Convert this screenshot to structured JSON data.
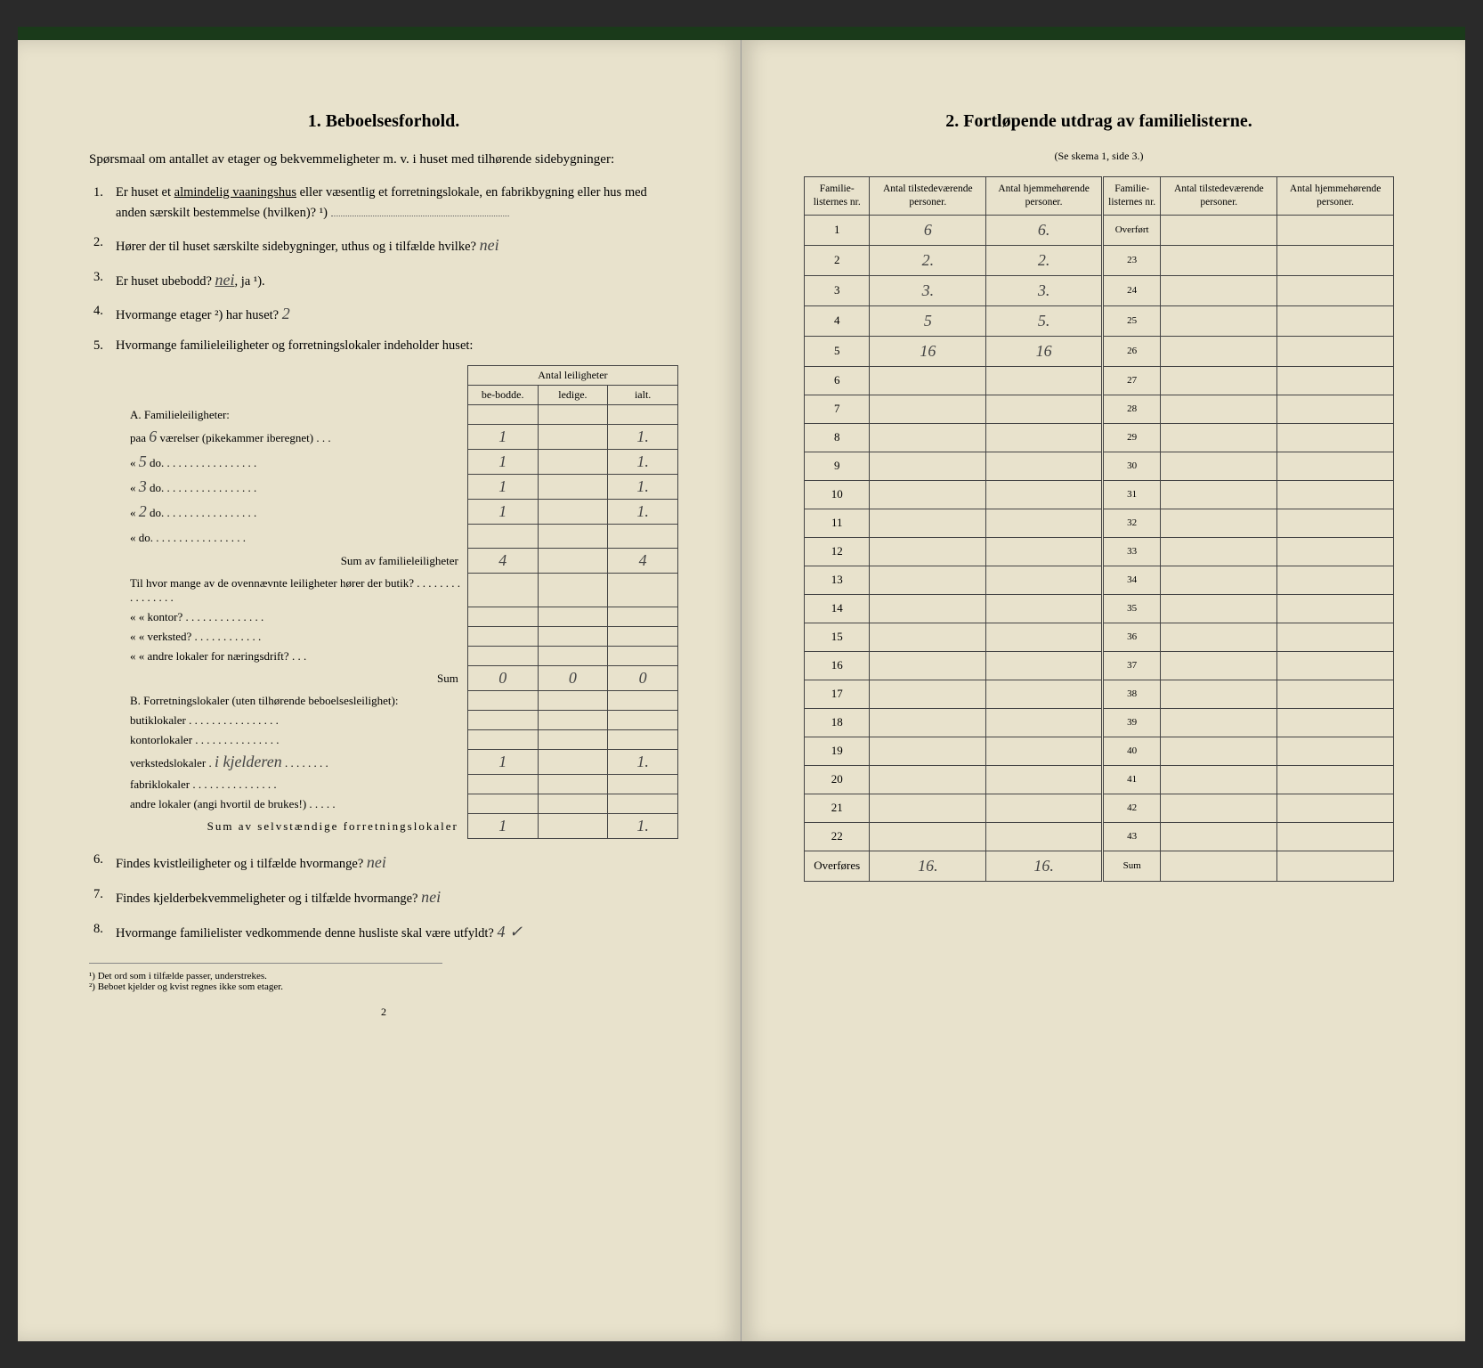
{
  "left": {
    "title": "1.   Beboelsesforhold.",
    "intro": "Spørsmaal om antallet av etager og bekvemmeligheter m. v. i huset med tilhørende sidebygninger:",
    "q1": {
      "num": "1.",
      "text": "Er huset et ",
      "underlined": "almindelig vaaningshus",
      "text2": " eller væsentlig et forretningslokale, en fabrikbygning eller hus med anden særskilt bestemmelse (hvilken)? ¹)",
      "answer": ""
    },
    "q2": {
      "num": "2.",
      "text": "Hører der til huset særskilte sidebygninger, uthus og i tilfælde hvilke?",
      "answer": "nei"
    },
    "q3": {
      "num": "3.",
      "text": "Er huset ubebodd? ",
      "answer_underlined": "nei",
      "text2": ", ja ¹)."
    },
    "q4": {
      "num": "4.",
      "text": "Hvormange etager ²) har huset?",
      "answer": "2"
    },
    "q5": {
      "num": "5.",
      "text": "Hvormange familieleiligheter og forretningslokaler indeholder huset:"
    },
    "table5": {
      "header_top": "Antal leiligheter",
      "header_cols": [
        "be-bodde.",
        "ledige.",
        "ialt."
      ],
      "sectionA": "A. Familieleiligheter:",
      "rows_a": [
        {
          "label": "paa",
          "hw": "6",
          "label2": "værelser (pikekammer iberegnet) . . .",
          "c1": "1",
          "c2": "",
          "c3": "1."
        },
        {
          "label": "«",
          "hw": "5",
          "label2": "do.  . . . . . . . . . . . . . . . .",
          "c1": "1",
          "c2": "",
          "c3": "1."
        },
        {
          "label": "«",
          "hw": "3",
          "label2": "do.  . . . . . . . . . . . . . . . .",
          "c1": "1",
          "c2": "",
          "c3": "1."
        },
        {
          "label": "«",
          "hw": "2",
          "label2": "do.  . . . . . . . . . . . . . . . .",
          "c1": "1",
          "c2": "",
          "c3": "1."
        },
        {
          "label": "«",
          "hw": "",
          "label2": "do.  . . . . . . . . . . . . . . . .",
          "c1": "",
          "c2": "",
          "c3": ""
        }
      ],
      "sumA": {
        "label": "Sum av familieleiligheter",
        "c1": "4",
        "c2": "",
        "c3": "4"
      },
      "middle_text": "Til hvor mange av de ovennævnte leiligheter hører der butik? . . . . . . . . . . . . . . . .",
      "middle_rows": [
        {
          "label": "«   «   kontor? . . . . . . . . . . . . . .",
          "c1": "",
          "c2": "",
          "c3": ""
        },
        {
          "label": "«   «   verksted? . . . . . . . . . . . .",
          "c1": "",
          "c2": "",
          "c3": ""
        },
        {
          "label": "«   «   andre lokaler for næringsdrift? . . .",
          "c1": "",
          "c2": "",
          "c3": ""
        }
      ],
      "sum_mid": {
        "label": "Sum",
        "c1": "0",
        "c2": "0",
        "c3": "0"
      },
      "sectionB": "B. Forretningslokaler (uten tilhørende beboelsesleilighet):",
      "rows_b": [
        {
          "label": "butiklokaler . . . . . . . . . . . . . . . .",
          "c1": "",
          "c2": "",
          "c3": ""
        },
        {
          "label": "kontorlokaler . . . . . . . . . . . . . . .",
          "c1": "",
          "c2": "",
          "c3": ""
        },
        {
          "label": "verkstedslokaler .",
          "hw": "i kjelderen",
          "label2": ". . . . . . . .",
          "c1": "1",
          "c2": "",
          "c3": "1."
        },
        {
          "label": "fabriklokaler . . . . . . . . . . . . . . .",
          "c1": "",
          "c2": "",
          "c3": ""
        },
        {
          "label": "andre lokaler (angi hvortil de brukes!) . . . . .",
          "c1": "",
          "c2": "",
          "c3": ""
        }
      ],
      "sumB": {
        "label": "Sum av selvstændige forretningslokaler",
        "c1": "1",
        "c2": "",
        "c3": "1."
      }
    },
    "q6": {
      "num": "6.",
      "text": "Findes kvistleiligheter og i tilfælde hvormange?",
      "answer": "nei"
    },
    "q7": {
      "num": "7.",
      "text": "Findes kjelderbekvemmeligheter og i tilfælde hvormange?",
      "answer": "nei"
    },
    "q8": {
      "num": "8.",
      "text": "Hvormange familielister vedkommende denne husliste skal være utfyldt?",
      "answer": "4 ✓"
    },
    "footnote1": "¹) Det ord som i tilfælde passer, understrekes.",
    "footnote2": "²) Beboet kjelder og kvist regnes ikke som etager.",
    "page_num": "2"
  },
  "right": {
    "title": "2.   Fortløpende utdrag av familielisterne.",
    "subtitle": "(Se skema 1, side 3.)",
    "headers": [
      "Familie-listernes nr.",
      "Antal tilstedeværende personer.",
      "Antal hjemmehørende personer.",
      "Familie-listernes nr.",
      "Antal tilstedeværende personer.",
      "Antal hjemmehørende personer."
    ],
    "rows": [
      {
        "n1": "1",
        "c1": "6",
        "c2": "6.",
        "n2": "Overført",
        "c3": "",
        "c4": ""
      },
      {
        "n1": "2",
        "c1": "2.",
        "c2": "2.",
        "n2": "23",
        "c3": "",
        "c4": ""
      },
      {
        "n1": "3",
        "c1": "3.",
        "c2": "3.",
        "n2": "24",
        "c3": "",
        "c4": ""
      },
      {
        "n1": "4",
        "c1": "5",
        "c2": "5.",
        "n2": "25",
        "c3": "",
        "c4": ""
      },
      {
        "n1": "5",
        "c1": "16",
        "c2": "16",
        "n2": "26",
        "c3": "",
        "c4": ""
      },
      {
        "n1": "6",
        "c1": "",
        "c2": "",
        "n2": "27",
        "c3": "",
        "c4": ""
      },
      {
        "n1": "7",
        "c1": "",
        "c2": "",
        "n2": "28",
        "c3": "",
        "c4": ""
      },
      {
        "n1": "8",
        "c1": "",
        "c2": "",
        "n2": "29",
        "c3": "",
        "c4": ""
      },
      {
        "n1": "9",
        "c1": "",
        "c2": "",
        "n2": "30",
        "c3": "",
        "c4": ""
      },
      {
        "n1": "10",
        "c1": "",
        "c2": "",
        "n2": "31",
        "c3": "",
        "c4": ""
      },
      {
        "n1": "11",
        "c1": "",
        "c2": "",
        "n2": "32",
        "c3": "",
        "c4": ""
      },
      {
        "n1": "12",
        "c1": "",
        "c2": "",
        "n2": "33",
        "c3": "",
        "c4": ""
      },
      {
        "n1": "13",
        "c1": "",
        "c2": "",
        "n2": "34",
        "c3": "",
        "c4": ""
      },
      {
        "n1": "14",
        "c1": "",
        "c2": "",
        "n2": "35",
        "c3": "",
        "c4": ""
      },
      {
        "n1": "15",
        "c1": "",
        "c2": "",
        "n2": "36",
        "c3": "",
        "c4": ""
      },
      {
        "n1": "16",
        "c1": "",
        "c2": "",
        "n2": "37",
        "c3": "",
        "c4": ""
      },
      {
        "n1": "17",
        "c1": "",
        "c2": "",
        "n2": "38",
        "c3": "",
        "c4": ""
      },
      {
        "n1": "18",
        "c1": "",
        "c2": "",
        "n2": "39",
        "c3": "",
        "c4": ""
      },
      {
        "n1": "19",
        "c1": "",
        "c2": "",
        "n2": "40",
        "c3": "",
        "c4": ""
      },
      {
        "n1": "20",
        "c1": "",
        "c2": "",
        "n2": "41",
        "c3": "",
        "c4": ""
      },
      {
        "n1": "21",
        "c1": "",
        "c2": "",
        "n2": "42",
        "c3": "",
        "c4": ""
      },
      {
        "n1": "22",
        "c1": "",
        "c2": "",
        "n2": "43",
        "c3": "",
        "c4": ""
      },
      {
        "n1": "Overføres",
        "c1": "16.",
        "c2": "16.",
        "n2": "Sum",
        "c3": "",
        "c4": ""
      }
    ]
  }
}
